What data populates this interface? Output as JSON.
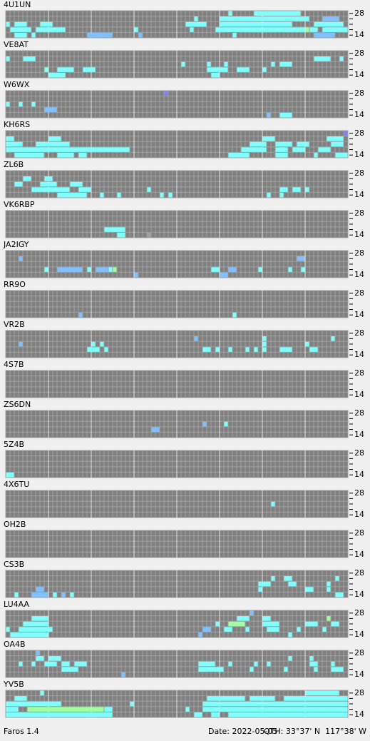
{
  "rows": 5,
  "columns": 80,
  "palette": [
    "#80ffff",
    "#80c0ff",
    "#a0ffa0",
    "#8080ff",
    "#a0a0a0"
  ],
  "axis_labels": [
    "28",
    "14"
  ],
  "panels": [
    {
      "name": "4U1UN",
      "runs": [
        [
          0,
          52,
          52,
          0
        ],
        [
          0,
          58,
          68,
          0
        ],
        [
          1,
          44,
          44,
          0
        ],
        [
          1,
          50,
          70,
          0
        ],
        [
          1,
          74,
          77,
          1
        ],
        [
          2,
          0,
          0,
          0
        ],
        [
          2,
          2,
          4,
          0
        ],
        [
          2,
          8,
          10,
          0
        ],
        [
          2,
          42,
          46,
          0
        ],
        [
          2,
          50,
          66,
          0
        ],
        [
          2,
          72,
          78,
          0
        ],
        [
          3,
          1,
          5,
          0
        ],
        [
          3,
          7,
          13,
          0
        ],
        [
          3,
          30,
          30,
          0
        ],
        [
          3,
          43,
          43,
          0
        ],
        [
          3,
          49,
          69,
          0
        ],
        [
          3,
          70,
          70,
          2
        ],
        [
          3,
          71,
          72,
          0
        ],
        [
          3,
          74,
          79,
          0
        ],
        [
          4,
          2,
          4,
          0
        ],
        [
          4,
          6,
          6,
          0
        ],
        [
          4,
          19,
          24,
          1
        ],
        [
          4,
          31,
          31,
          1
        ],
        [
          4,
          53,
          53,
          0
        ],
        [
          4,
          72,
          76,
          1
        ]
      ]
    },
    {
      "name": "VE8AT",
      "runs": [
        [
          1,
          0,
          0,
          0
        ],
        [
          1,
          4,
          6,
          0
        ],
        [
          1,
          72,
          75,
          0
        ],
        [
          1,
          78,
          78,
          0
        ],
        [
          2,
          41,
          41,
          0
        ],
        [
          2,
          47,
          47,
          0
        ],
        [
          2,
          51,
          51,
          0
        ],
        [
          2,
          62,
          62,
          0
        ],
        [
          2,
          64,
          66,
          0
        ],
        [
          3,
          9,
          9,
          0
        ],
        [
          3,
          12,
          15,
          0
        ],
        [
          3,
          18,
          20,
          0
        ],
        [
          3,
          47,
          51,
          0
        ],
        [
          3,
          54,
          56,
          0
        ],
        [
          3,
          60,
          60,
          0
        ],
        [
          4,
          10,
          13,
          0
        ],
        [
          4,
          48,
          49,
          0
        ]
      ]
    },
    {
      "name": "W6WX",
      "runs": [
        [
          0,
          37,
          37,
          3
        ],
        [
          2,
          0,
          0,
          0
        ],
        [
          2,
          3,
          3,
          0
        ],
        [
          2,
          6,
          6,
          0
        ],
        [
          3,
          9,
          11,
          1
        ],
        [
          4,
          61,
          61,
          1
        ],
        [
          4,
          64,
          66,
          0
        ]
      ]
    },
    {
      "name": "KH6RS",
      "runs": [
        [
          0,
          79,
          79,
          3
        ],
        [
          1,
          0,
          1,
          0
        ],
        [
          1,
          10,
          12,
          0
        ],
        [
          1,
          60,
          62,
          0
        ],
        [
          1,
          75,
          78,
          0
        ],
        [
          2,
          0,
          3,
          0
        ],
        [
          2,
          7,
          14,
          0
        ],
        [
          2,
          57,
          60,
          0
        ],
        [
          2,
          63,
          66,
          0
        ],
        [
          2,
          68,
          70,
          0
        ],
        [
          2,
          76,
          78,
          0
        ],
        [
          3,
          0,
          28,
          0
        ],
        [
          3,
          55,
          60,
          0
        ],
        [
          3,
          63,
          65,
          0
        ],
        [
          3,
          67,
          69,
          0
        ],
        [
          3,
          73,
          75,
          0
        ],
        [
          4,
          2,
          8,
          0
        ],
        [
          4,
          12,
          15,
          0
        ],
        [
          4,
          17,
          18,
          0
        ],
        [
          4,
          52,
          56,
          0
        ],
        [
          4,
          63,
          65,
          0
        ],
        [
          4,
          72,
          72,
          0
        ],
        [
          4,
          77,
          79,
          0
        ]
      ]
    },
    {
      "name": "ZL6B",
      "runs": [
        [
          1,
          4,
          5,
          0
        ],
        [
          1,
          9,
          10,
          0
        ],
        [
          2,
          2,
          3,
          0
        ],
        [
          2,
          8,
          11,
          0
        ],
        [
          2,
          15,
          17,
          0
        ],
        [
          3,
          6,
          14,
          0
        ],
        [
          3,
          17,
          19,
          0
        ],
        [
          3,
          33,
          33,
          0
        ],
        [
          3,
          64,
          65,
          0
        ],
        [
          3,
          67,
          68,
          0
        ],
        [
          3,
          70,
          70,
          0
        ],
        [
          4,
          12,
          18,
          0
        ],
        [
          4,
          22,
          22,
          0
        ],
        [
          4,
          26,
          26,
          0
        ],
        [
          4,
          36,
          36,
          0
        ],
        [
          4,
          38,
          38,
          0
        ],
        [
          4,
          61,
          61,
          0
        ],
        [
          4,
          64,
          64,
          0
        ]
      ]
    },
    {
      "name": "VK6RBP",
      "runs": [
        [
          3,
          23,
          27,
          0
        ],
        [
          4,
          26,
          27,
          0
        ],
        [
          4,
          33,
          33,
          4
        ]
      ]
    },
    {
      "name": "JA2IGY",
      "runs": [
        [
          1,
          3,
          3,
          1
        ],
        [
          1,
          68,
          69,
          1
        ],
        [
          3,
          9,
          9,
          0
        ],
        [
          3,
          12,
          17,
          1
        ],
        [
          3,
          19,
          19,
          0
        ],
        [
          3,
          21,
          23,
          1
        ],
        [
          3,
          24,
          24,
          0
        ],
        [
          3,
          25,
          25,
          2
        ],
        [
          3,
          48,
          49,
          0
        ],
        [
          3,
          52,
          53,
          1
        ],
        [
          3,
          59,
          59,
          0
        ],
        [
          3,
          66,
          66,
          0
        ],
        [
          3,
          69,
          69,
          0
        ],
        [
          4,
          30,
          30,
          1
        ],
        [
          4,
          50,
          51,
          1
        ]
      ]
    },
    {
      "name": "RR9O",
      "runs": [
        [
          4,
          17,
          17,
          1
        ],
        [
          4,
          53,
          53,
          0
        ]
      ]
    },
    {
      "name": "VR2B",
      "runs": [
        [
          1,
          44,
          44,
          1
        ],
        [
          1,
          60,
          60,
          0
        ],
        [
          1,
          76,
          76,
          0
        ],
        [
          2,
          3,
          3,
          1
        ],
        [
          2,
          20,
          20,
          0
        ],
        [
          2,
          22,
          22,
          0
        ],
        [
          2,
          60,
          60,
          0
        ],
        [
          2,
          70,
          70,
          0
        ],
        [
          3,
          19,
          21,
          0
        ],
        [
          3,
          23,
          23,
          0
        ],
        [
          3,
          46,
          47,
          0
        ],
        [
          3,
          49,
          49,
          0
        ],
        [
          3,
          52,
          52,
          0
        ],
        [
          3,
          56,
          56,
          0
        ],
        [
          3,
          58,
          58,
          0
        ],
        [
          3,
          60,
          60,
          0
        ],
        [
          3,
          64,
          66,
          0
        ],
        [
          3,
          71,
          72,
          0
        ]
      ]
    },
    {
      "name": "4S7B",
      "runs": []
    },
    {
      "name": "ZS6DN",
      "runs": [
        [
          2,
          46,
          46,
          1
        ],
        [
          2,
          51,
          51,
          0
        ],
        [
          3,
          34,
          35,
          1
        ]
      ]
    },
    {
      "name": "5Z4B",
      "runs": [
        [
          4,
          0,
          1,
          0
        ]
      ]
    },
    {
      "name": "4X6TU",
      "runs": [
        [
          2,
          62,
          62,
          0
        ]
      ]
    },
    {
      "name": "OH2B",
      "runs": []
    },
    {
      "name": "CS3B",
      "runs": [
        [
          1,
          62,
          62,
          0
        ],
        [
          1,
          65,
          66,
          0
        ],
        [
          1,
          77,
          77,
          0
        ],
        [
          2,
          59,
          61,
          0
        ],
        [
          2,
          66,
          67,
          0
        ],
        [
          2,
          75,
          75,
          0
        ],
        [
          3,
          7,
          8,
          1
        ],
        [
          3,
          59,
          59,
          0
        ],
        [
          3,
          70,
          71,
          0
        ],
        [
          3,
          75,
          75,
          0
        ],
        [
          4,
          2,
          2,
          0
        ],
        [
          4,
          6,
          9,
          1
        ],
        [
          4,
          11,
          11,
          0
        ],
        [
          4,
          13,
          13,
          1
        ],
        [
          4,
          15,
          15,
          0
        ],
        [
          4,
          77,
          78,
          0
        ]
      ]
    },
    {
      "name": "LU4AA",
      "runs": [
        [
          0,
          57,
          57,
          1
        ],
        [
          1,
          6,
          9,
          0
        ],
        [
          1,
          54,
          56,
          0
        ],
        [
          1,
          60,
          61,
          0
        ],
        [
          1,
          75,
          75,
          2
        ],
        [
          2,
          4,
          9,
          0
        ],
        [
          2,
          49,
          49,
          0
        ],
        [
          2,
          52,
          55,
          2
        ],
        [
          2,
          60,
          63,
          0
        ],
        [
          2,
          70,
          72,
          0
        ],
        [
          2,
          76,
          77,
          0
        ],
        [
          3,
          0,
          0,
          0
        ],
        [
          3,
          3,
          10,
          0
        ],
        [
          3,
          46,
          47,
          1
        ],
        [
          3,
          51,
          52,
          0
        ],
        [
          3,
          56,
          56,
          0
        ],
        [
          3,
          61,
          63,
          0
        ],
        [
          3,
          68,
          68,
          0
        ],
        [
          3,
          74,
          74,
          0
        ],
        [
          4,
          1,
          9,
          0
        ],
        [
          4,
          45,
          45,
          1
        ],
        [
          4,
          66,
          66,
          0
        ]
      ]
    },
    {
      "name": "OA4B",
      "runs": [
        [
          0,
          7,
          7,
          1
        ],
        [
          1,
          7,
          8,
          0
        ],
        [
          1,
          10,
          12,
          0
        ],
        [
          1,
          66,
          66,
          0
        ],
        [
          1,
          71,
          71,
          0
        ],
        [
          2,
          3,
          3,
          0
        ],
        [
          2,
          6,
          6,
          0
        ],
        [
          2,
          9,
          11,
          0
        ],
        [
          2,
          13,
          14,
          0
        ],
        [
          2,
          16,
          18,
          0
        ],
        [
          2,
          45,
          48,
          0
        ],
        [
          2,
          52,
          52,
          0
        ],
        [
          2,
          58,
          58,
          0
        ],
        [
          2,
          61,
          61,
          0
        ],
        [
          2,
          71,
          72,
          0
        ],
        [
          2,
          76,
          76,
          0
        ],
        [
          3,
          13,
          16,
          0
        ],
        [
          3,
          45,
          50,
          0
        ],
        [
          3,
          57,
          57,
          0
        ],
        [
          3,
          65,
          65,
          0
        ],
        [
          3,
          72,
          72,
          0
        ],
        [
          3,
          76,
          78,
          0
        ],
        [
          4,
          27,
          27,
          1
        ]
      ]
    },
    {
      "name": "YV5B",
      "runs": [
        [
          0,
          8,
          8,
          0
        ],
        [
          0,
          70,
          77,
          0
        ],
        [
          1,
          2,
          4,
          0
        ],
        [
          1,
          47,
          55,
          0
        ],
        [
          1,
          57,
          62,
          0
        ],
        [
          1,
          65,
          79,
          0
        ],
        [
          2,
          0,
          12,
          0
        ],
        [
          2,
          29,
          29,
          0
        ],
        [
          2,
          46,
          79,
          0
        ],
        [
          3,
          0,
          2,
          0
        ],
        [
          3,
          5,
          22,
          2
        ],
        [
          3,
          23,
          24,
          0
        ],
        [
          3,
          42,
          42,
          0
        ],
        [
          3,
          46,
          79,
          0
        ],
        [
          4,
          0,
          24,
          0
        ],
        [
          4,
          44,
          45,
          0
        ],
        [
          4,
          48,
          49,
          0
        ],
        [
          4,
          52,
          79,
          0
        ]
      ]
    }
  ],
  "footer": {
    "app": "Faros 1.4",
    "date": "Date: 2022-05-05",
    "qth": "QTH: 33°37' N  117°38' W"
  }
}
